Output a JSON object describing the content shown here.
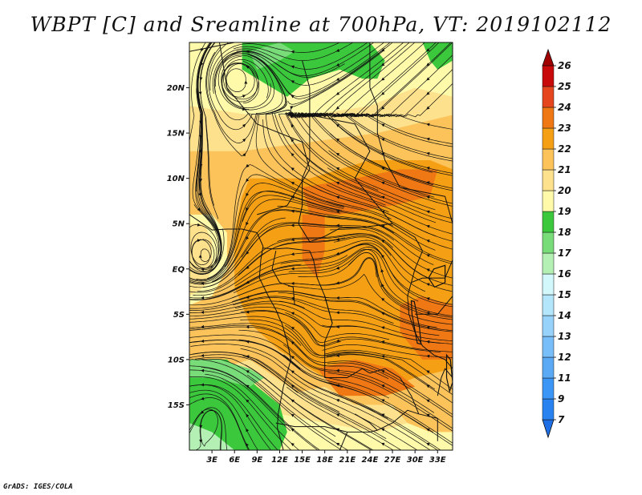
{
  "map": {
    "title": "WBPT [C] and Sreamline at 700hPa, VT: 2019102112",
    "footer": "GrADS: IGES/COLA",
    "variable": "Wet-bulb potential temperature",
    "units": "C",
    "level": "700hPa",
    "valid_time": "2019102112"
  },
  "axes": {
    "lat_labels": [
      "20N",
      "15N",
      "10N",
      "5N",
      "EQ",
      "5S",
      "10S",
      "15S"
    ],
    "lat_values": [
      20,
      15,
      10,
      5,
      0,
      -5,
      -10,
      -15
    ],
    "lon_labels": [
      "3E",
      "6E",
      "9E",
      "12E",
      "15E",
      "18E",
      "21E",
      "24E",
      "27E",
      "30E",
      "33E"
    ],
    "lon_values": [
      3,
      6,
      9,
      12,
      15,
      18,
      21,
      24,
      27,
      30,
      33
    ],
    "lon_range": [
      0,
      35
    ],
    "lat_range": [
      -20,
      25
    ]
  },
  "colorbar": {
    "levels": [
      "7",
      "9",
      "11",
      "12",
      "13",
      "14",
      "15",
      "16",
      "17",
      "18",
      "19",
      "20",
      "21",
      "22",
      "23",
      "24",
      "25",
      "26"
    ],
    "colors": [
      "#1e6ee6",
      "#2882f0",
      "#3c96f5",
      "#5aaaf5",
      "#78bef9",
      "#96d2fa",
      "#b4e6fb",
      "#d2f8fc",
      "#b4f0b4",
      "#78dc78",
      "#3cc83c",
      "#fffaaa",
      "#fde18c",
      "#fbc35a",
      "#f5a014",
      "#f07814",
      "#e6461e",
      "#c80a0a",
      "#a00000"
    ]
  },
  "field_colors": {
    "green_dark": "#3cc83c",
    "green_mid": "#78dc78",
    "green_light": "#b4f0b4",
    "pale_yellow": "#fffaaa",
    "light_orange": "#fde18c",
    "orange": "#fbc35a",
    "dark_orange": "#f5a014",
    "red_orange": "#f07814",
    "streamline": "#111111",
    "border": "#111111"
  }
}
